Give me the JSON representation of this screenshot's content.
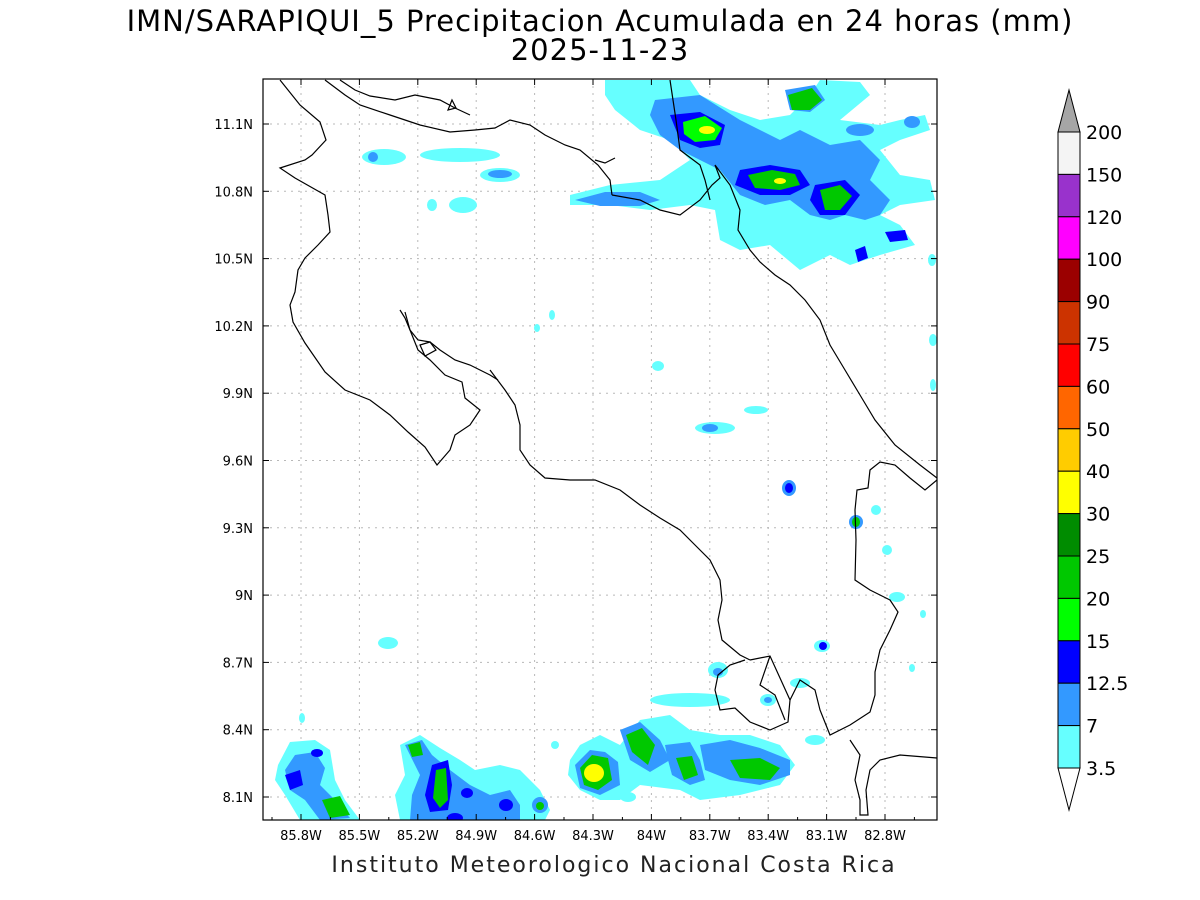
{
  "title": "IMN/SARAPIQUI_5 Precipitacion Acumulada en 24 horas (mm)",
  "date": "2025-11-23",
  "footer": "Instituto Meteorologico Nacional Costa Rica",
  "lon_ticks": [
    "85.8W",
    "85.5W",
    "85.2W",
    "84.9W",
    "84.6W",
    "84.3W",
    "84W",
    "83.7W",
    "83.4W",
    "83.1W",
    "82.8W"
  ],
  "lat_ticks": [
    "11.1N",
    "10.8N",
    "10.5N",
    "10.2N",
    "9.9N",
    "9.6N",
    "9.3N",
    "9N",
    "8.7N",
    "8.4N",
    "8.1N"
  ],
  "colorbar": {
    "levels": [
      "200",
      "150",
      "120",
      "100",
      "90",
      "75",
      "60",
      "50",
      "40",
      "30",
      "25",
      "20",
      "15",
      "12.5",
      "7",
      "3.5"
    ],
    "colors": [
      "#f4f4f4",
      "#9932cc",
      "#ff00ff",
      "#9b0000",
      "#cc3300",
      "#ff0000",
      "#ff6600",
      "#ffcc00",
      "#ffff00",
      "#008c00",
      "#00c800",
      "#00ff00",
      "#0000ff",
      "#3399ff",
      "#66ffff"
    ],
    "over_color": "#a6a6a6",
    "under_color": "#ffffff"
  }
}
